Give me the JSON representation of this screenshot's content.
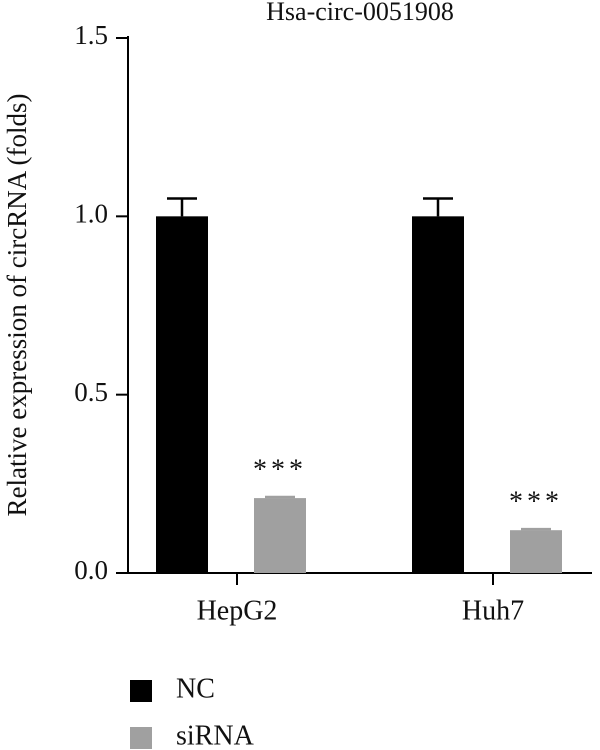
{
  "chart_data": {
    "type": "bar",
    "title": "Hsa-circ-0051908",
    "y_label": "Relative expression of circRNA (folds)",
    "categories": [
      "HepG2",
      "Huh7"
    ],
    "series": [
      {
        "name": "NC",
        "color": "#000000",
        "values": [
          1.0,
          1.0
        ],
        "errors": [
          0.05,
          0.05
        ]
      },
      {
        "name": "siRNA",
        "color": "#a0a0a0",
        "values": [
          0.21,
          0.12
        ],
        "errors": [
          0.003,
          0.003
        ],
        "annotations": [
          "***",
          "***"
        ]
      }
    ],
    "ylim": [
      0,
      1.5
    ],
    "yticks": [
      {
        "value": 0,
        "label": "0.0"
      },
      {
        "value": 0.5,
        "label": "0.5"
      },
      {
        "value": 1.0,
        "label": "1.0"
      },
      {
        "value": 1.5,
        "label": "1.5"
      }
    ],
    "legend": "bottom-left"
  }
}
